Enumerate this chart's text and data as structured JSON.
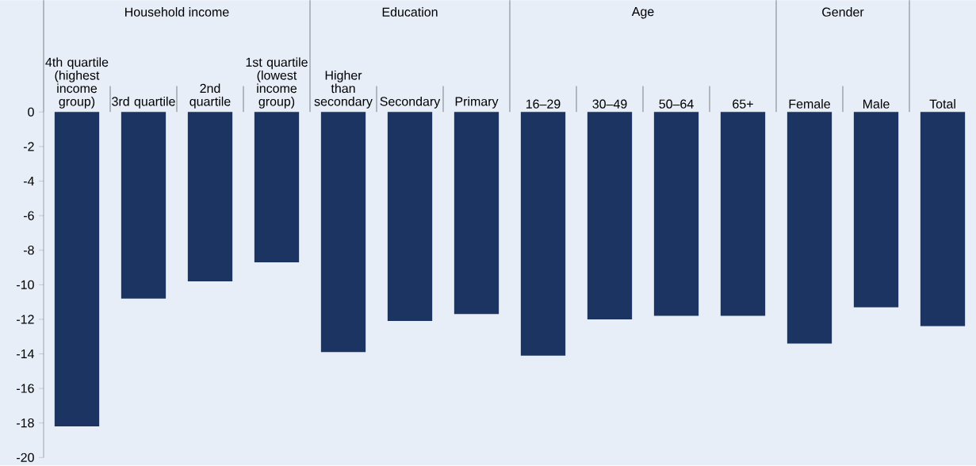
{
  "chart_data": {
    "type": "bar",
    "categories": [
      "4th quartile (highest income group)",
      "3rd quartile",
      "2nd quartile",
      "1st quartile (lowest income group)",
      "Higher than secondary",
      "Secondary",
      "Primary",
      "16–29",
      "30–49",
      "50–64",
      "65+",
      "Female",
      "Male",
      "Total"
    ],
    "values": [
      -18.2,
      -10.8,
      -9.8,
      -8.7,
      -13.9,
      -12.1,
      -11.7,
      -14.1,
      -12.0,
      -11.8,
      -11.8,
      -13.4,
      -11.3,
      -12.4
    ],
    "color": "#1c3461",
    "ylim": [
      -20,
      0
    ],
    "yticks": [
      -20,
      -18,
      -16,
      -14,
      -12,
      -10,
      -8,
      -6,
      -4,
      -2,
      0
    ],
    "grid": false,
    "annotations": [
      "Household income",
      "Education",
      "Age",
      "Gender"
    ]
  }
}
